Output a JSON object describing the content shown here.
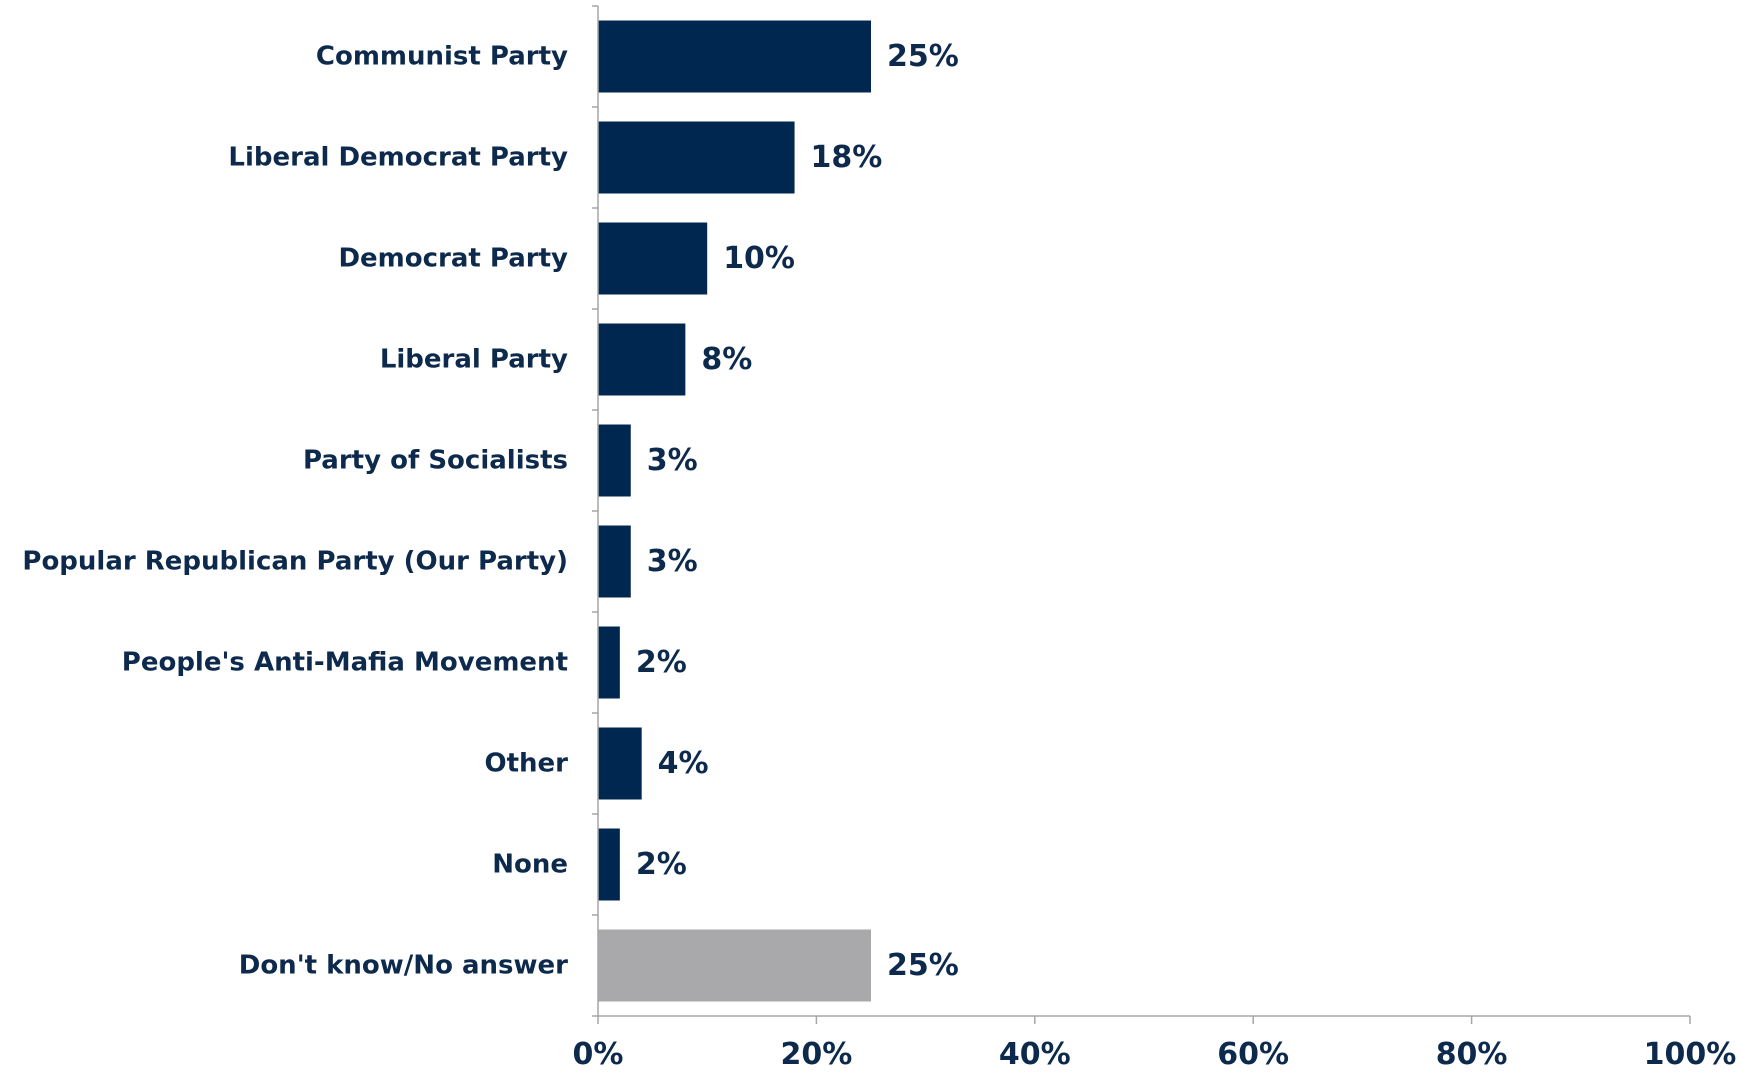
{
  "chart_data": {
    "type": "bar",
    "orientation": "horizontal",
    "categories": [
      "Communist Party",
      "Liberal Democrat Party",
      "Democrat Party",
      "Liberal Party",
      "Party of Socialists",
      "Popular Republican Party (Our Party)",
      "People's Anti-Mafia Movement",
      "Other",
      "None",
      "Don't know/No answer"
    ],
    "values": [
      25,
      18,
      10,
      8,
      3,
      3,
      2,
      4,
      2,
      25
    ],
    "data_labels": [
      "25%",
      "18%",
      "10%",
      "8%",
      "3%",
      "3%",
      "2%",
      "4%",
      "2%",
      "25%"
    ],
    "bar_colors": [
      "#00274f",
      "#00274f",
      "#00274f",
      "#00274f",
      "#00274f",
      "#00274f",
      "#00274f",
      "#00274f",
      "#00274f",
      "#a9a9ab"
    ],
    "xlim": [
      0,
      100
    ],
    "x_ticks": [
      0,
      20,
      40,
      60,
      80,
      100
    ],
    "x_tick_labels": [
      "0%",
      "20%",
      "40%",
      "60%",
      "80%",
      "100%"
    ],
    "title": "",
    "xlabel": "",
    "ylabel": "",
    "grid": false,
    "legend": "none",
    "axis_color": "#a6a6a6",
    "text_color": "#0d2a4c"
  }
}
